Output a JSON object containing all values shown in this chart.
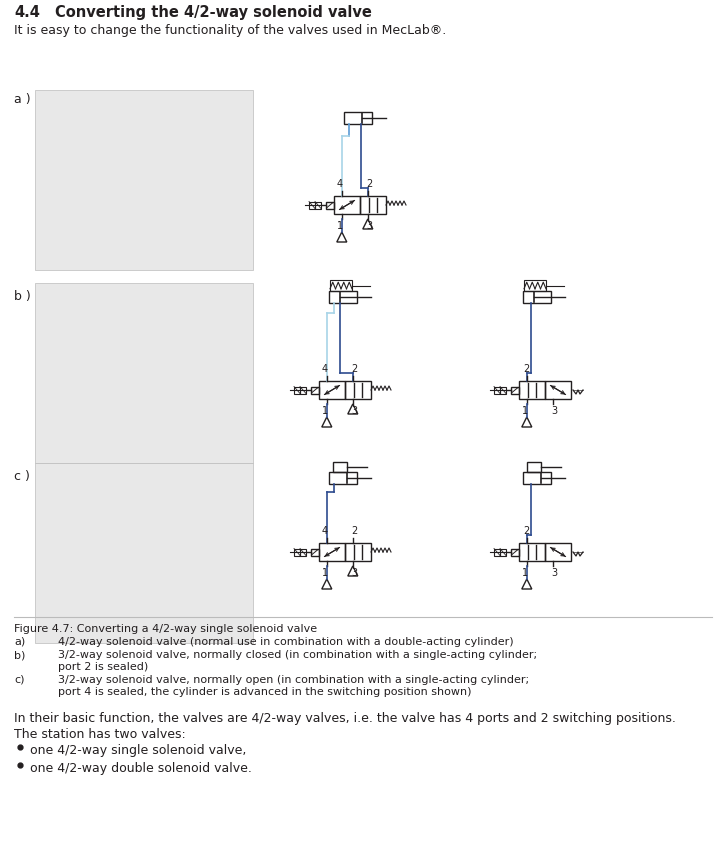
{
  "title_num": "4.4",
  "title_text": "Converting the 4/2-way solenoid valve",
  "subtitle": "It is easy to change the functionality of the valves used in MecLab®.",
  "figure_caption": "Figure 4.7: Converting a 4/2-way single solenoid valve",
  "caption_a": "4/2-way solenoid valve (normal use in combination with a double-acting cylinder)",
  "caption_b1": "3/2-way solenoid valve, normally closed (in combination with a single-acting cylinder;",
  "caption_b2": "port 2 is sealed)",
  "caption_c1": "3/2-way solenoid valve, normally open (in combination with a single-acting cylinder;",
  "caption_c2": "port 4 is sealed, the cylinder is advanced in the switching position shown)",
  "para1": "In their basic function, the valves are 4/2-way valves, i.e. the valve has 4 ports and 2 switching positions.",
  "para2": "The station has two valves:",
  "bullet1": "one 4/2-way single solenoid valve,",
  "bullet2": "one 4/2-way double solenoid valve.",
  "label_a": "a )",
  "label_b": "b )",
  "label_c": "c )",
  "bg_color": "#ffffff",
  "text_color": "#231f20",
  "title_color": "#231f20",
  "diagram_color": "#231f20",
  "blue_line": "#5b9bd5",
  "blue_dark": "#2e4b8f"
}
